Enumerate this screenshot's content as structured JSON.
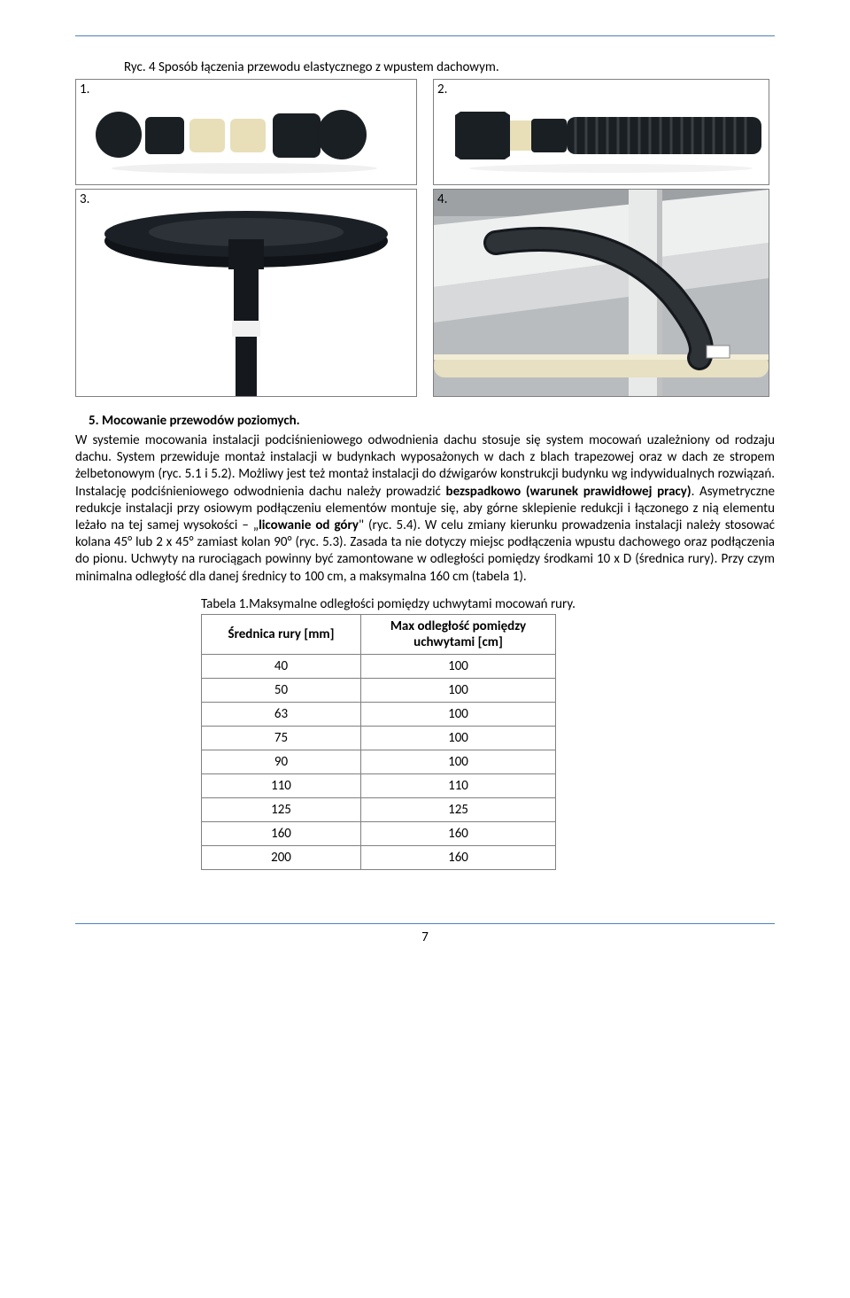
{
  "figure_caption": "Ryc. 4 Sposób łączenia przewodu elastycznego z wpustem dachowym.",
  "panels": {
    "p1": "1.",
    "p2": "2.",
    "p3": "3.",
    "p4": "4."
  },
  "section_heading": "5.    Mocowanie przewodów poziomych.",
  "body_paragraph": "W systemie mocowania instalacji podciśnieniowego odwodnienia dachu stosuje się system mocowań uzależniony od rodzaju dachu. System przewiduje montaż instalacji w budynkach wyposażonych w dach z blach trapezowej oraz w dach ze stropem żelbetonowym (ryc. 5.1 i 5.2). Możliwy jest też montaż instalacji do dźwigarów konstrukcji budynku wg indywidualnych rozwiązań. Instalację podciśnieniowego odwodnienia dachu należy prowadzić bezspadkowo (warunek prawidłowej pracy). Asymetryczne redukcje instalacji przy osiowym podłączeniu elementów montuje się, aby górne sklepienie redukcji i łączonego z nią elementu leżało na tej samej wysokości – „licowanie od góry\" (ryc. 5.4). W celu zmiany kierunku prowadzenia instalacji należy stosować kolana 45° lub 2 x 45° zamiast kolan 90° (ryc. 5.3). Zasada ta nie dotyczy miejsc podłączenia wpustu dachowego oraz podłączenia do pionu. Uchwyty na rurociągach powinny być zamontowane w odległości pomiędzy środkami 10 x D (średnica rury). Przy czym minimalna odległość dla danej średnicy to 100 cm, a maksymalna 160 cm (tabela 1).",
  "bold_range": {
    "phrase": "bezspadkowo (warunek prawidłowej pracy)"
  },
  "bold_inline": "licowanie od góry",
  "table": {
    "caption": "Tabela 1.Maksymalne odległości pomiędzy uchwytami mocowań rury.",
    "columns": [
      "Średnica rury [mm]",
      "Max odległość pomiędzy uchwytami [cm]"
    ],
    "rows": [
      [
        "40",
        "100"
      ],
      [
        "50",
        "100"
      ],
      [
        "63",
        "100"
      ],
      [
        "75",
        "100"
      ],
      [
        "90",
        "100"
      ],
      [
        "110",
        "110"
      ],
      [
        "125",
        "125"
      ],
      [
        "160",
        "160"
      ],
      [
        "200",
        "160"
      ]
    ]
  },
  "page_number": "7",
  "colors": {
    "rule": "#4f81bd",
    "cell_border": "#808080",
    "pipe_dark": "#1a1f24",
    "pipe_cream": "#e8dfb8",
    "floor": "#bfbfbf",
    "wall_gray": "#c8cbce",
    "beam_white": "#f1f1f1"
  }
}
